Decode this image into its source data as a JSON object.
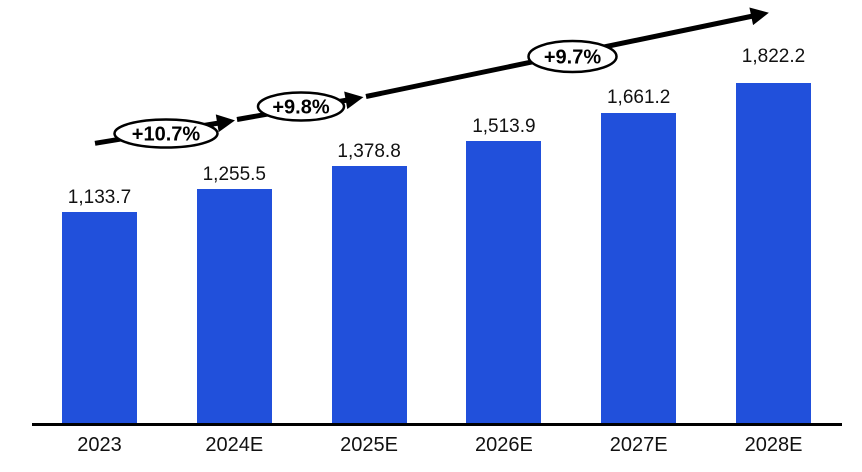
{
  "chart_data": {
    "type": "bar",
    "title": "",
    "xlabel": "",
    "ylabel": "",
    "categories": [
      "2023",
      "2024E",
      "2025E",
      "2026E",
      "2027E",
      "2028E"
    ],
    "values": [
      1133.7,
      1255.5,
      1378.8,
      1513.9,
      1661.2,
      1822.2
    ],
    "value_labels": [
      "1,133.7",
      "1,255.5",
      "1,378.8",
      "1,513.9",
      "1,661.2",
      "1,822.2"
    ],
    "growth_annotations": [
      {
        "label": "+10.7%"
      },
      {
        "label": "+9.8%"
      },
      {
        "label": "+9.7%"
      }
    ],
    "ylim": [
      0,
      2000
    ],
    "grid": false,
    "legend": "none",
    "colors": {
      "bar": "#2150db",
      "axis_line": "#000000",
      "trend_arrow": "#000000",
      "annotation_fill": "#ffffff",
      "annotation_stroke": "#000000",
      "label_text": "#111111"
    }
  }
}
